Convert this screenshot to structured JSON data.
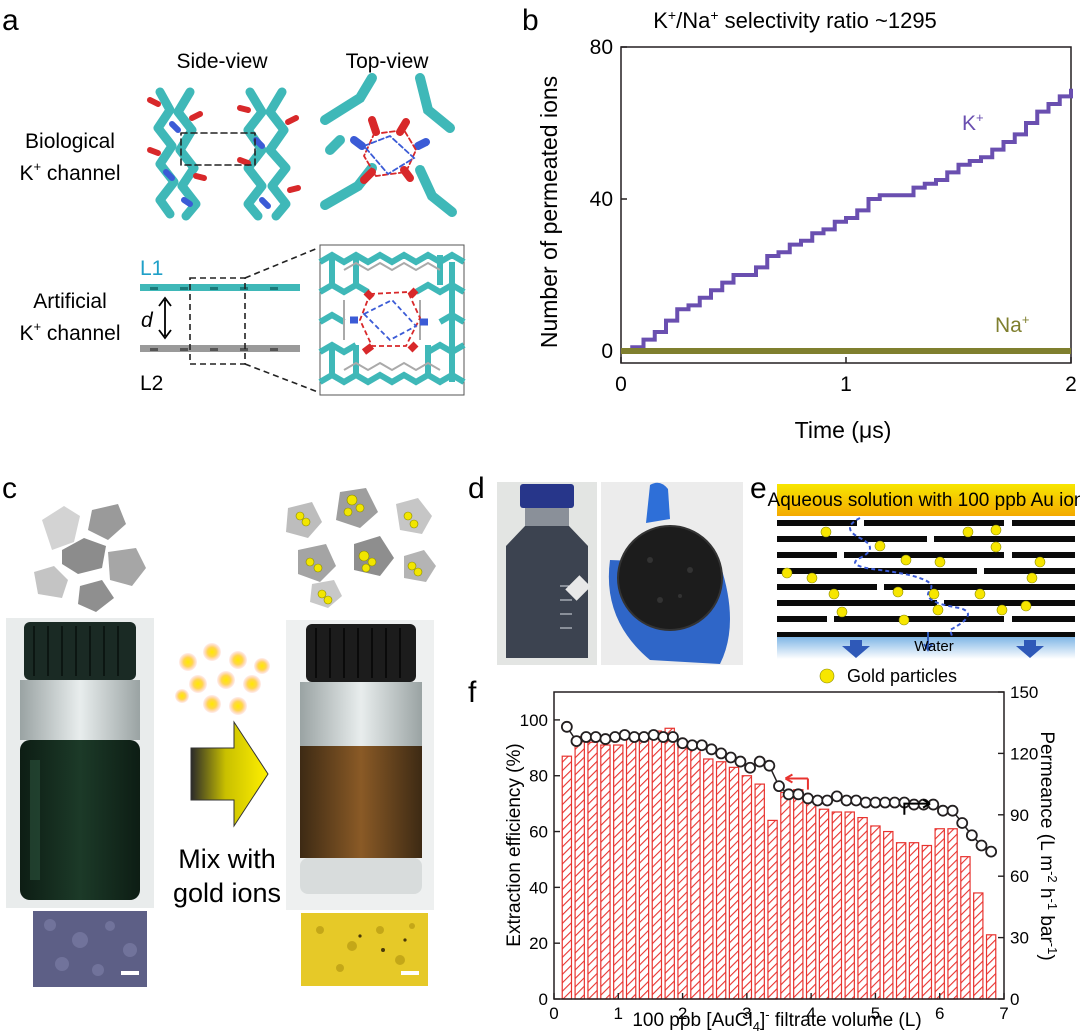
{
  "panels": {
    "a": {
      "label": "a",
      "side_view": "Side-view",
      "top_view": "Top-view",
      "bio_line1": "Biological",
      "bio_line2": "K",
      "bio_line2_sup": "+",
      "bio_line2_rest": " channel",
      "art_line1": "Artificial",
      "art_line2": "K",
      "art_line2_sup": "+",
      "art_line2_rest": " channel",
      "layer1": "L1",
      "layer2": "L2",
      "spacing": "d"
    },
    "b": {
      "label": "b",
      "colors": {
        "k": "#6a4fb0",
        "na": "#7f7f2e"
      }
    },
    "c": {
      "label": "c",
      "mix_line1": "Mix with",
      "mix_line2": "gold ions"
    },
    "d": {
      "label": "d"
    },
    "e": {
      "label": "e",
      "banner": "Aqueous solution with 100 ppb Au ion",
      "water": "Water",
      "legend": "Gold particles"
    },
    "f": {
      "label": "f",
      "colors": {
        "bars": "#e8332f",
        "line": "#231f20",
        "left_arrow": "#e8332f",
        "right_arrow": "#000000"
      }
    }
  },
  "chart_data": [
    {
      "type": "line",
      "panel": "b",
      "title_parts": [
        "K",
        "+",
        "/Na",
        "+",
        " selectivity ratio ~1295"
      ],
      "xlabel": "Time (μs)",
      "ylabel": "Number of permeated ions",
      "xlim": [
        0,
        2
      ],
      "ylim": [
        0,
        80
      ],
      "xticks": [
        0,
        1,
        2
      ],
      "yticks": [
        0,
        40,
        80
      ],
      "series": [
        {
          "name": "K",
          "sup": "+",
          "x": [
            0.0,
            0.05,
            0.1,
            0.15,
            0.2,
            0.25,
            0.3,
            0.35,
            0.4,
            0.45,
            0.5,
            0.55,
            0.6,
            0.65,
            0.7,
            0.75,
            0.8,
            0.85,
            0.9,
            0.95,
            1.0,
            1.05,
            1.1,
            1.15,
            1.2,
            1.25,
            1.3,
            1.35,
            1.4,
            1.45,
            1.5,
            1.55,
            1.6,
            1.65,
            1.7,
            1.75,
            1.8,
            1.85,
            1.9,
            1.95,
            2.0
          ],
          "y": [
            0,
            1,
            3,
            5,
            8,
            11,
            12,
            14,
            16,
            18,
            20,
            20,
            22,
            25,
            26,
            28,
            29,
            31,
            32,
            34,
            35,
            37,
            40,
            41,
            41,
            41,
            43,
            44,
            45,
            47,
            49,
            50,
            51,
            53,
            55,
            57,
            60,
            63,
            65,
            67,
            69
          ]
        },
        {
          "name": "Na",
          "sup": "+",
          "x": [
            0,
            2
          ],
          "y": [
            0,
            0
          ]
        }
      ]
    },
    {
      "type": "bar",
      "panel": "f",
      "xlabel_parts": [
        "100 ppb [AuCl",
        "4",
        "]",
        "-",
        " filtrate volume (L)"
      ],
      "ylabel": "Extraction efficiency (%)",
      "y2label_parts": [
        "Permeance (L m",
        "-2",
        " h",
        "-1",
        " bar",
        "-1",
        ")"
      ],
      "xlim": [
        0,
        7
      ],
      "ylim": [
        0,
        110
      ],
      "y2lim": [
        0,
        150
      ],
      "xticks": [
        0,
        1,
        2,
        3,
        4,
        5,
        6,
        7
      ],
      "yticks": [
        0,
        20,
        40,
        60,
        80,
        100
      ],
      "y2ticks": [
        0,
        30,
        60,
        90,
        120,
        150
      ],
      "bars": {
        "name": "Extraction efficiency",
        "x": [
          0.2,
          0.4,
          0.6,
          0.8,
          1.0,
          1.2,
          1.4,
          1.6,
          1.8,
          2.0,
          2.2,
          2.4,
          2.6,
          2.8,
          3.0,
          3.2,
          3.4,
          3.6,
          3.8,
          4.0,
          4.2,
          4.4,
          4.6,
          4.8,
          5.0,
          5.2,
          5.4,
          5.6,
          5.8,
          6.0,
          6.2,
          6.4,
          6.6,
          6.8
        ],
        "values": [
          87,
          94,
          92,
          91,
          91,
          94,
          95,
          96,
          97,
          91,
          90,
          86,
          85,
          83,
          80,
          77,
          64,
          74,
          75,
          72,
          68,
          67,
          67,
          65,
          62,
          60,
          56,
          56,
          55,
          61,
          61,
          51,
          38,
          23
        ]
      },
      "line": {
        "name": "Permeance",
        "x": [
          0.2,
          0.35,
          0.5,
          0.65,
          0.8,
          0.95,
          1.1,
          1.25,
          1.4,
          1.55,
          1.7,
          1.85,
          2.0,
          2.15,
          2.3,
          2.45,
          2.6,
          2.75,
          2.9,
          3.05,
          3.2,
          3.35,
          3.5,
          3.65,
          3.8,
          3.95,
          4.1,
          4.25,
          4.4,
          4.55,
          4.7,
          4.85,
          5.0,
          5.15,
          5.3,
          5.45,
          5.6,
          5.75,
          5.9,
          6.05,
          6.2,
          6.35,
          6.5,
          6.65,
          6.8
        ],
        "values": [
          133,
          126,
          128,
          128,
          127,
          128,
          129,
          128,
          128,
          129,
          128,
          128,
          125,
          124,
          124,
          122,
          120,
          118,
          116,
          113,
          116,
          114,
          104,
          100,
          100,
          98,
          97,
          97,
          99,
          97,
          97,
          96,
          96,
          96,
          96,
          96,
          95,
          95,
          95,
          92,
          92,
          86,
          80,
          75,
          72
        ]
      }
    }
  ]
}
